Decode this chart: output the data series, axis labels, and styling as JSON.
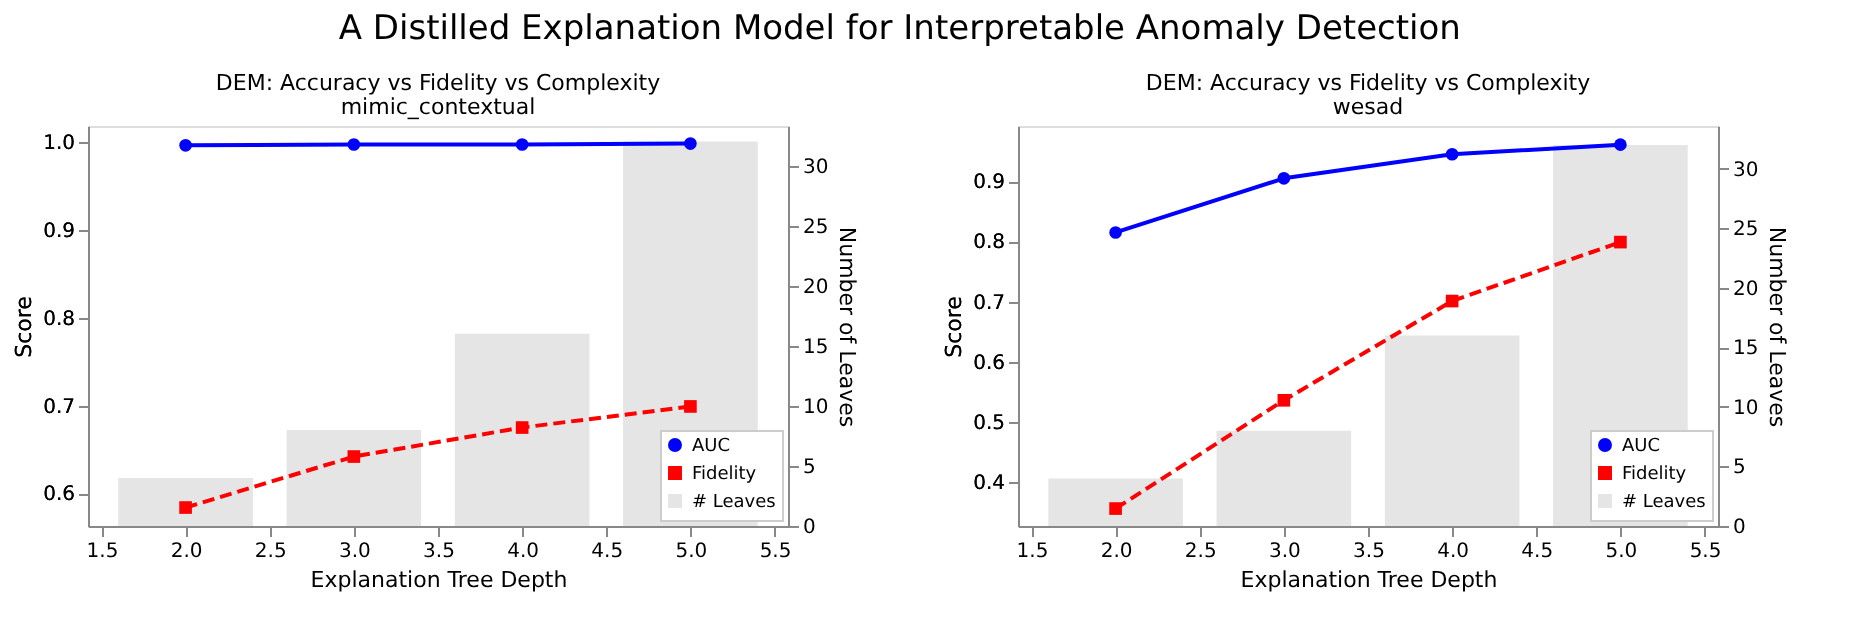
{
  "chart_data": [
    {
      "type": "line",
      "title": "DEM: Accuracy vs Fidelity vs Complexity",
      "subtitle": "mimic_contextual",
      "xlabel": "Explanation Tree Depth",
      "ylabel": "Score",
      "y2label": "Number of Leaves",
      "annotations": [
        "A Distilled Explanation Model for Interpretable Anomaly Detection"
      ],
      "x": [
        2,
        3,
        4,
        5
      ],
      "xlim": [
        1.42,
        5.58
      ],
      "xticks": [
        1.5,
        {
          "value": 2,
          "label": "2.0"
        },
        2.5,
        {
          "value": 3,
          "label": "3.0"
        },
        3.5,
        {
          "value": 4,
          "label": "4.0"
        },
        4.5,
        {
          "value": 5,
          "label": "5.0"
        },
        5.5
      ],
      "ylim": [
        0.563,
        1.018
      ],
      "yticks": [
        0.6,
        0.7,
        0.8,
        0.9,
        {
          "value": 1,
          "label": "1.0"
        }
      ],
      "y2lim": [
        0,
        33.3
      ],
      "y2ticks": [
        0,
        5,
        10,
        15,
        20,
        25,
        30
      ],
      "grid": false,
      "legend": "bottom right",
      "series": [
        {
          "name": "AUC",
          "color": "#0000ff",
          "marker": "circle",
          "line_style": "solid",
          "values": [
            0.996,
            0.997,
            0.997,
            0.998
          ]
        },
        {
          "name": "Fidelity",
          "color": "#ff0000",
          "marker": "square",
          "line_style": "dashed",
          "values": [
            0.584,
            0.642,
            0.675,
            0.699
          ]
        },
        {
          "name": "# Leaves",
          "type": "bar",
          "axis": "y2",
          "color": "#e5e5e5",
          "values": [
            4,
            8,
            16,
            32
          ]
        }
      ]
    },
    {
      "type": "line",
      "title": "DEM: Accuracy vs Fidelity vs Complexity",
      "subtitle": "wesad",
      "xlabel": "Explanation Tree Depth",
      "ylabel": "Score",
      "y2label": "Number of Leaves",
      "x": [
        2,
        3,
        4,
        5
      ],
      "xlim": [
        1.42,
        5.58
      ],
      "xticks": [
        1.5,
        {
          "value": 2,
          "label": "2.0"
        },
        2.5,
        {
          "value": 3,
          "label": "3.0"
        },
        3.5,
        {
          "value": 4,
          "label": "4.0"
        },
        4.5,
        {
          "value": 5,
          "label": "5.0"
        },
        5.5
      ],
      "ylim": [
        0.327,
        0.992
      ],
      "yticks": [
        0.4,
        0.5,
        0.6,
        0.7,
        0.8,
        0.9
      ],
      "y2lim": [
        0,
        33.6
      ],
      "y2ticks": [
        0,
        5,
        10,
        15,
        20,
        25,
        30
      ],
      "grid": false,
      "legend": "bottom right",
      "series": [
        {
          "name": "AUC",
          "color": "#0000ff",
          "marker": "circle",
          "line_style": "solid",
          "values": [
            0.815,
            0.905,
            0.945,
            0.961
          ]
        },
        {
          "name": "Fidelity",
          "color": "#ff0000",
          "marker": "square",
          "line_style": "dashed",
          "values": [
            0.356,
            0.536,
            0.701,
            0.799
          ]
        },
        {
          "name": "# Leaves",
          "type": "bar",
          "axis": "y2",
          "color": "#e5e5e5",
          "values": [
            4,
            8,
            16,
            32
          ]
        }
      ]
    }
  ]
}
